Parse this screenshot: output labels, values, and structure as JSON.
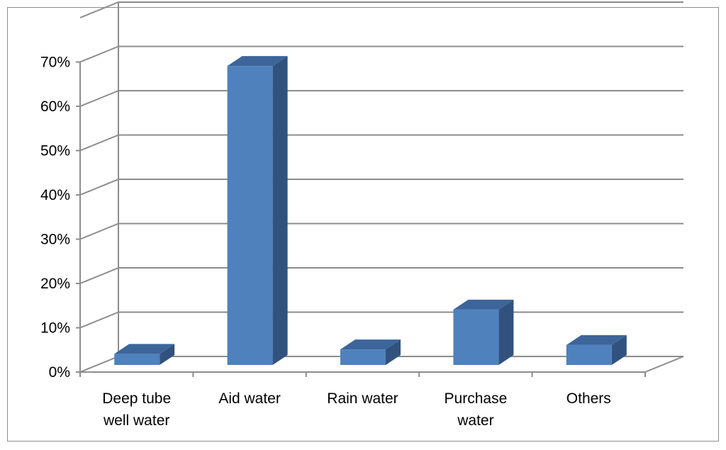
{
  "chart_data": {
    "type": "bar",
    "categories": [
      "Deep tube well water",
      "Aid water",
      "Rain water",
      "Purchase water",
      "Others"
    ],
    "category_label_lines": [
      [
        "Deep tube",
        "well water"
      ],
      [
        "Aid water"
      ],
      [
        "Rain water"
      ],
      [
        "Purchase",
        "water"
      ],
      [
        "Others"
      ]
    ],
    "values": [
      2.5,
      67.5,
      3.5,
      12.5,
      4.5
    ],
    "y_ticks": [
      "0%",
      "10%",
      "20%",
      "30%",
      "40%",
      "50%",
      "60%",
      "70%"
    ],
    "ylim": [
      0,
      70
    ],
    "unit": "%",
    "grid": true,
    "style": "3d-column",
    "colors": {
      "front": "#4f81bd",
      "side": "#31527f",
      "top": "#3d659a",
      "grid": "#8c8c8c"
    }
  }
}
